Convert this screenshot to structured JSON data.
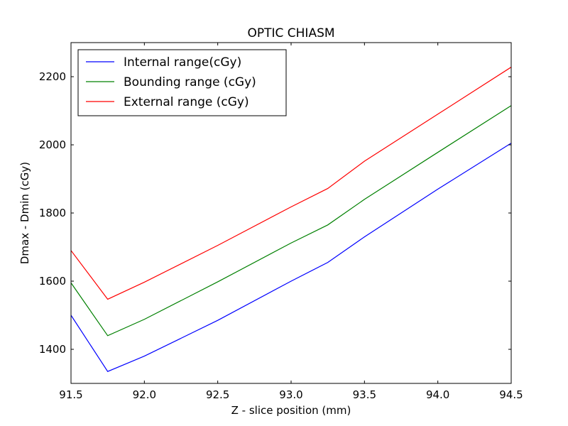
{
  "chart_data": {
    "type": "line",
    "title": "OPTIC CHIASM",
    "xlabel": "Z - slice position (mm)",
    "ylabel": "Dmax - Dmin (cGy)",
    "xlim": [
      91.5,
      94.5
    ],
    "ylim": [
      1300,
      2300
    ],
    "xticks": [
      91.5,
      92.0,
      92.5,
      93.0,
      93.5,
      94.0,
      94.5
    ],
    "xtick_labels": [
      "91.5",
      "92.0",
      "92.5",
      "93.0",
      "93.5",
      "94.0",
      "94.5"
    ],
    "yticks": [
      1400,
      1600,
      1800,
      2000,
      2200
    ],
    "ytick_labels": [
      "1400",
      "1600",
      "1800",
      "2000",
      "2200"
    ],
    "grid": false,
    "legend_position": "top-left",
    "x": [
      91.5,
      91.75,
      92.0,
      92.5,
      93.0,
      93.25,
      93.5,
      94.0,
      94.5
    ],
    "series": [
      {
        "name": "Internal range(cGy)",
        "color": "#0000ff",
        "values": [
          1500,
          1335,
          1380,
          1485,
          1600,
          1655,
          1730,
          1870,
          2005
        ]
      },
      {
        "name": "Bounding range (cGy)",
        "color": "#008000",
        "values": [
          1595,
          1440,
          1488,
          1598,
          1712,
          1765,
          1840,
          1978,
          2115
        ]
      },
      {
        "name": "External range (cGy)",
        "color": "#ff0000",
        "values": [
          1690,
          1547,
          1597,
          1705,
          1818,
          1872,
          1952,
          2090,
          2228
        ]
      }
    ]
  }
}
